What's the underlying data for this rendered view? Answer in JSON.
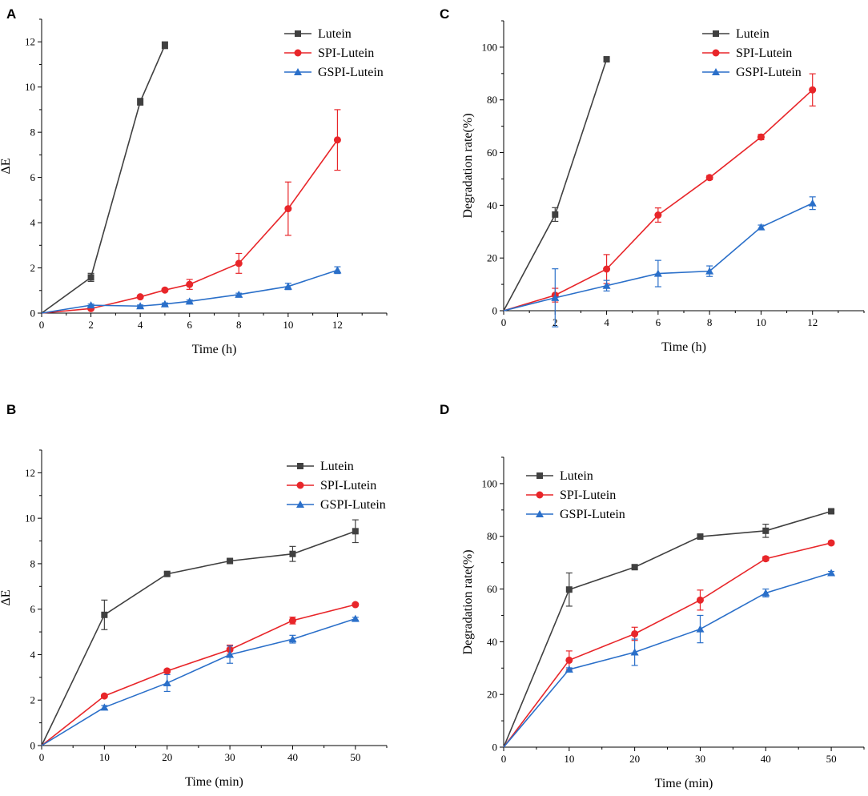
{
  "figure": {
    "panels": [
      "A",
      "B",
      "C",
      "D"
    ]
  },
  "chart_data": [
    {
      "panel": "A",
      "type": "line",
      "title": "",
      "xlabel": "Time (h)",
      "ylabel": "ΔE",
      "xlim": [
        0,
        14
      ],
      "ylim": [
        0,
        13
      ],
      "xticks": [
        0,
        2,
        4,
        6,
        8,
        10,
        12
      ],
      "yticks": [
        0,
        2,
        4,
        6,
        8,
        10,
        12
      ],
      "legend_position": "top-right",
      "series": [
        {
          "name": "Lutein",
          "color": "#404040",
          "marker": "square",
          "x": [
            0,
            2,
            4,
            5
          ],
          "y": [
            0,
            1.58,
            9.35,
            11.85
          ],
          "err": [
            0,
            0.18,
            0.15,
            0.15
          ]
        },
        {
          "name": "SPI-Lutein",
          "color": "#e8262a",
          "marker": "circle",
          "x": [
            0,
            2,
            4,
            5,
            6,
            8,
            10,
            12
          ],
          "y": [
            0,
            0.2,
            0.72,
            1.02,
            1.27,
            2.2,
            4.62,
            7.66
          ],
          "err": [
            0,
            0.05,
            0.05,
            0.05,
            0.22,
            0.44,
            1.18,
            1.34
          ]
        },
        {
          "name": "GSPI-Lutein",
          "color": "#2a6fc9",
          "marker": "triangle",
          "x": [
            0,
            2,
            4,
            5,
            6,
            8,
            10,
            12
          ],
          "y": [
            0,
            0.35,
            0.31,
            0.4,
            0.52,
            0.82,
            1.18,
            1.9
          ],
          "err": [
            0,
            0.05,
            0.05,
            0.05,
            0.06,
            0.06,
            0.14,
            0.15
          ]
        }
      ]
    },
    {
      "panel": "B",
      "type": "line",
      "title": "",
      "xlabel": "Time (min)",
      "ylabel": "ΔE",
      "xlim": [
        0,
        55
      ],
      "ylim": [
        0,
        13
      ],
      "xticks": [
        0,
        10,
        20,
        30,
        40,
        50
      ],
      "yticks": [
        0,
        2,
        4,
        6,
        8,
        10,
        12
      ],
      "legend_position": "top-right",
      "series": [
        {
          "name": "Lutein",
          "color": "#404040",
          "marker": "square",
          "x": [
            0,
            10,
            20,
            30,
            40,
            50
          ],
          "y": [
            0,
            5.75,
            7.55,
            8.12,
            8.43,
            9.43
          ],
          "err": [
            0,
            0.65,
            0.08,
            0.08,
            0.33,
            0.5
          ]
        },
        {
          "name": "SPI-Lutein",
          "color": "#e8262a",
          "marker": "circle",
          "x": [
            0,
            10,
            20,
            30,
            40,
            50
          ],
          "y": [
            0,
            2.18,
            3.28,
            4.22,
            5.5,
            6.2
          ],
          "err": [
            0,
            0.06,
            0.08,
            0.2,
            0.15,
            0.06
          ]
        },
        {
          "name": "GSPI-Lutein",
          "color": "#2a6fc9",
          "marker": "triangle",
          "x": [
            0,
            10,
            20,
            30,
            40,
            50
          ],
          "y": [
            0,
            1.68,
            2.75,
            4.0,
            4.68,
            5.58
          ],
          "err": [
            0,
            0.08,
            0.37,
            0.38,
            0.17,
            0.06
          ]
        }
      ]
    },
    {
      "panel": "C",
      "type": "line",
      "title": "",
      "xlabel": "Time (h)",
      "ylabel": "Degradation rate(%)",
      "xlim": [
        0,
        14
      ],
      "ylim": [
        0,
        110
      ],
      "xticks": [
        0,
        2,
        4,
        6,
        8,
        10,
        12
      ],
      "yticks": [
        0,
        20,
        40,
        60,
        80,
        100
      ],
      "legend_position": "top-right",
      "series": [
        {
          "name": "Lutein",
          "color": "#404040",
          "marker": "square",
          "x": [
            0,
            2,
            4
          ],
          "y": [
            0,
            36.5,
            95.4
          ],
          "err": [
            0,
            2.6,
            0.6
          ]
        },
        {
          "name": "SPI-Lutein",
          "color": "#e8262a",
          "marker": "circle",
          "x": [
            0,
            2,
            4,
            6,
            8,
            10,
            12
          ],
          "y": [
            0,
            5.9,
            15.8,
            36.3,
            50.5,
            65.9,
            83.8
          ],
          "err": [
            0,
            2.6,
            5.5,
            2.7,
            0.8,
            1.0,
            6.1
          ]
        },
        {
          "name": "GSPI-Lutein",
          "color": "#2a6fc9",
          "marker": "triangle",
          "x": [
            0,
            2,
            4,
            6,
            8,
            10,
            12
          ],
          "y": [
            0,
            4.9,
            9.5,
            14.1,
            15.0,
            31.7,
            40.8
          ],
          "err": [
            0,
            11.0,
            2.0,
            5.0,
            2.0,
            0.8,
            2.4
          ]
        }
      ]
    },
    {
      "panel": "D",
      "type": "line",
      "title": "",
      "xlabel": "Time (min)",
      "ylabel": "Degradation rate(%)",
      "xlim": [
        0,
        55
      ],
      "ylim": [
        0,
        110
      ],
      "xticks": [
        0,
        10,
        20,
        30,
        40,
        50
      ],
      "yticks": [
        0,
        20,
        40,
        60,
        80,
        100
      ],
      "legend_position": "top-left",
      "series": [
        {
          "name": "Lutein",
          "color": "#404040",
          "marker": "square",
          "x": [
            0,
            10,
            20,
            30,
            40,
            50
          ],
          "y": [
            0,
            59.8,
            68.3,
            79.9,
            82.1,
            89.5
          ],
          "err": [
            0,
            6.3,
            0.8,
            0.6,
            2.5,
            0.6
          ]
        },
        {
          "name": "SPI-Lutein",
          "color": "#e8262a",
          "marker": "circle",
          "x": [
            0,
            10,
            20,
            30,
            40,
            50
          ],
          "y": [
            0,
            33.0,
            43.0,
            55.8,
            71.5,
            77.5
          ],
          "err": [
            0,
            3.5,
            2.5,
            3.8,
            0.8,
            0.6
          ]
        },
        {
          "name": "GSPI-Lutein",
          "color": "#2a6fc9",
          "marker": "triangle",
          "x": [
            0,
            10,
            20,
            30,
            40,
            50
          ],
          "y": [
            0,
            29.5,
            36.0,
            44.8,
            58.5,
            66.1
          ],
          "err": [
            0,
            0.6,
            5.0,
            5.2,
            1.5,
            0.6
          ]
        }
      ]
    }
  ]
}
